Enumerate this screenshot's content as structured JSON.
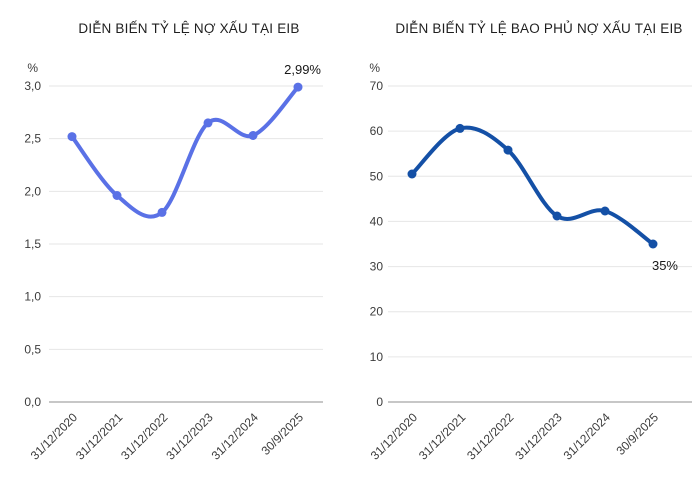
{
  "colors": {
    "background": "#ffffff",
    "gridline": "#e6e6e6",
    "baseline": "#8f8f8f",
    "title_text": "#1f1f1f",
    "tick_text": "#3c3c3c",
    "annotation_text": "#181818",
    "npl_line": "#5A71E6",
    "coverage_line": "#1450A6"
  },
  "chart_data": [
    {
      "type": "line",
      "title": "DIỄN BIẾN TỶ LỆ NỢ XẤU TẠI EIB",
      "unit_label": "%",
      "categories": [
        "31/12/2020",
        "31/12/2021",
        "31/12/2022",
        "31/12/2023",
        "31/12/2024",
        "30/9/2025"
      ],
      "values": [
        2.52,
        1.96,
        1.8,
        2.65,
        2.53,
        2.99
      ],
      "ylim": [
        0,
        3.0
      ],
      "y_tick_labels": [
        "3,0",
        "2,5",
        "2,0",
        "1,5",
        "1,0",
        "0,5",
        "0,0"
      ],
      "grid": "horizontal",
      "smooth": true,
      "legend": "none",
      "line_color": "#5A71E6",
      "annotation": {
        "text": "2,99%",
        "placement": "above-end"
      }
    },
    {
      "type": "line",
      "title": "DIỄN BIẾN TỶ LỆ BAO PHỦ NỢ XẤU TẠI EIB",
      "unit_label": "%",
      "categories": [
        "31/12/2020",
        "31/12/2021",
        "31/12/2022",
        "31/12/2023",
        "31/12/2024",
        "30/9/2025"
      ],
      "values": [
        50.5,
        60.6,
        55.8,
        41.2,
        42.3,
        35
      ],
      "ylim": [
        0,
        70
      ],
      "y_tick_labels": [
        "70",
        "60",
        "50",
        "40",
        "30",
        "20",
        "10",
        "0"
      ],
      "grid": "horizontal",
      "smooth": true,
      "legend": "none",
      "line_color": "#1450A6",
      "annotation": {
        "text": "35%",
        "placement": "below-end"
      }
    }
  ]
}
